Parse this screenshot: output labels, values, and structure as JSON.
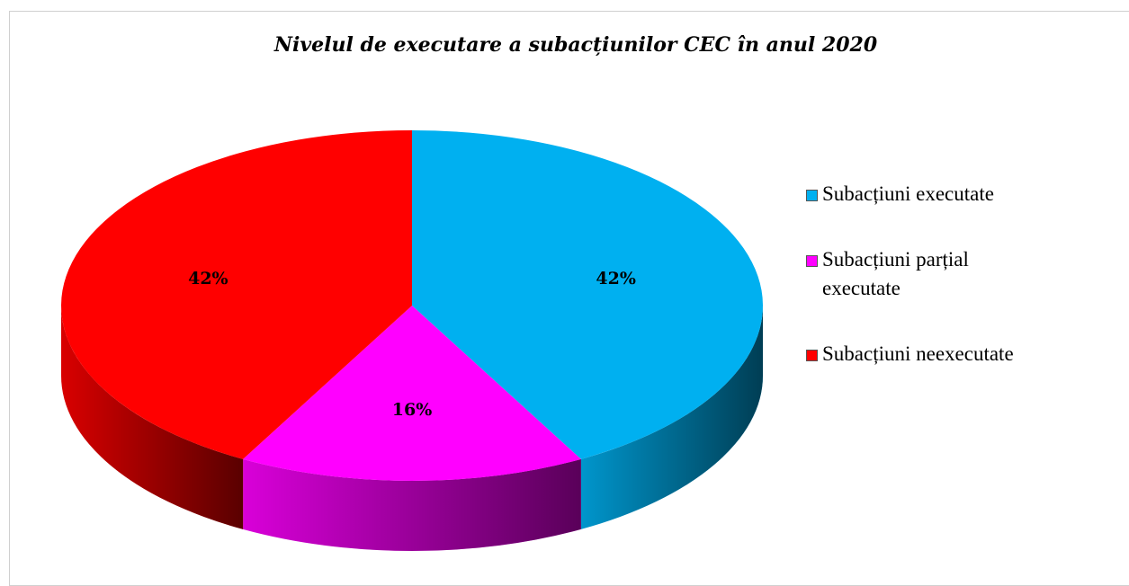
{
  "chart_data": {
    "type": "pie",
    "title": "Nivelul de executare a subacțiunilor CEC în anul 2020",
    "categories": [
      "Subacțiuni executate",
      "Subacțiuni parțial executate",
      "Subacțiuni neexecutate"
    ],
    "values": [
      42,
      16,
      42
    ],
    "value_labels": [
      "42%",
      "16%",
      "42%"
    ],
    "colors": [
      "#00b0f0",
      "#ff00ff",
      "#ff0000"
    ],
    "legend": "right"
  }
}
